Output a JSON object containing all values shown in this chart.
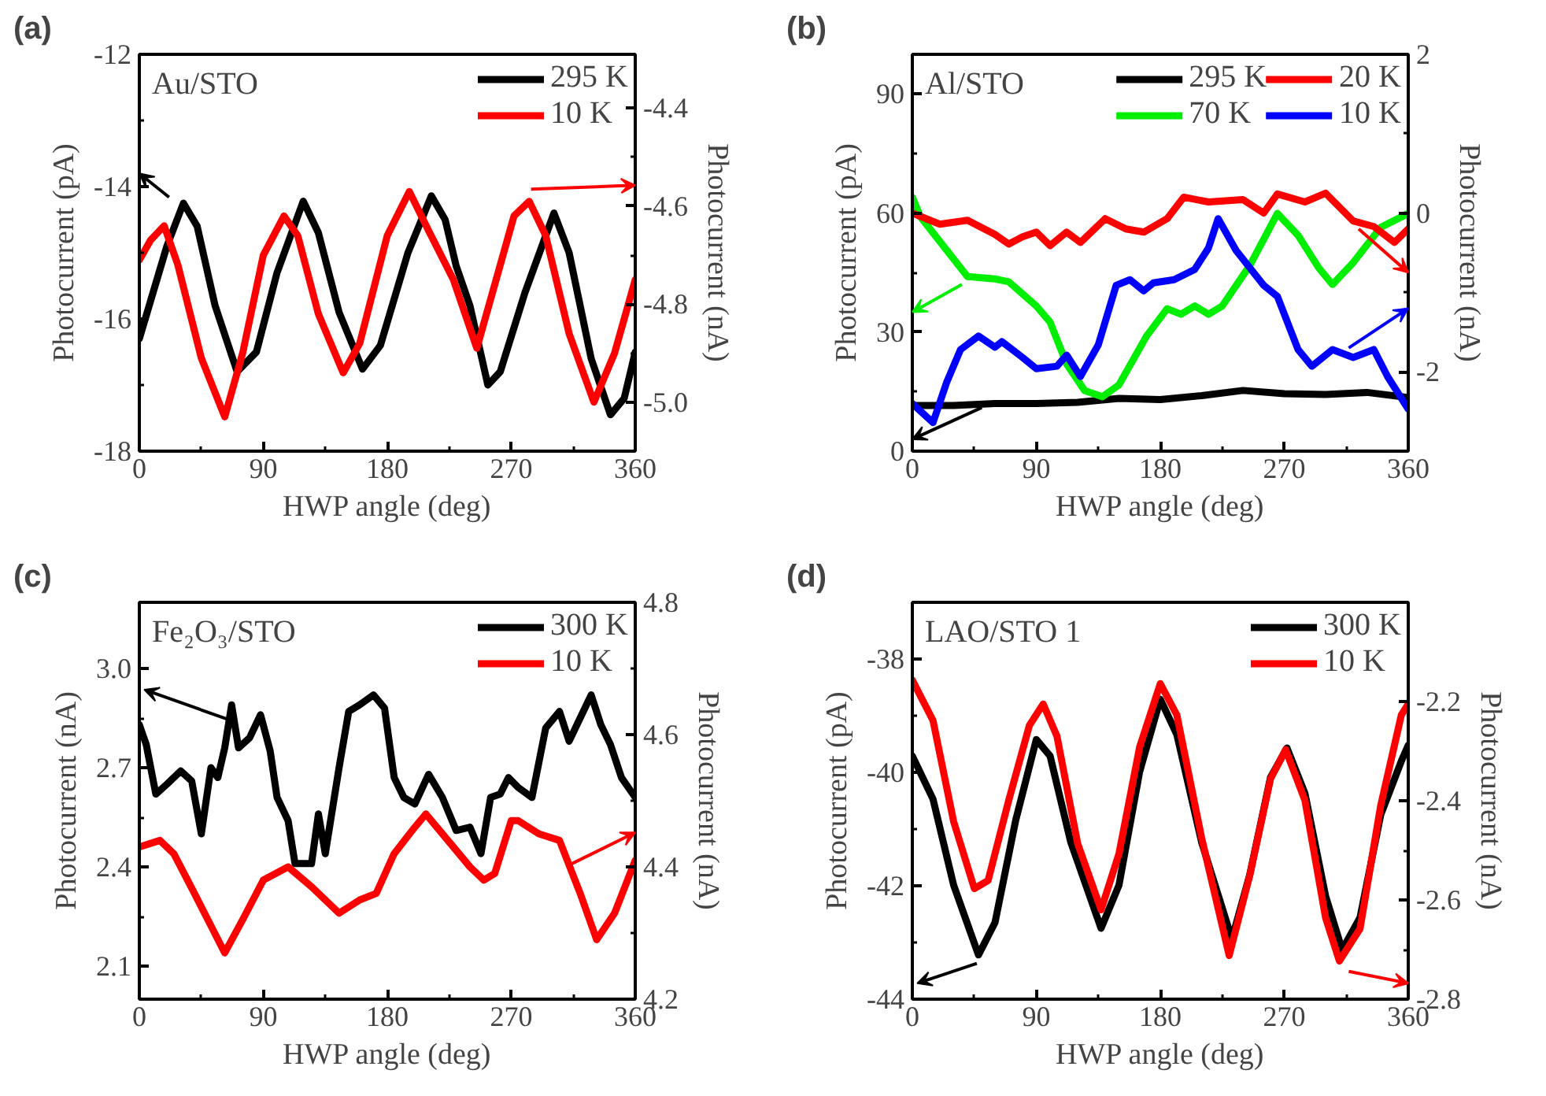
{
  "chart_data": [
    {
      "type": "line",
      "title": "(a)",
      "xlabel": "HWP angle (deg)",
      "ylabel": "Photocurrent (pA)",
      "y2label": "Photocurrent (nA)",
      "annotations": [
        "Au/STO"
      ],
      "legend": "top right",
      "grid": false,
      "xlim": [
        0,
        360
      ],
      "xticks": [
        0,
        90,
        180,
        270,
        360
      ],
      "ylim": [
        -18,
        -12
      ],
      "yticks": [
        -18,
        -16,
        -14,
        -12
      ],
      "y2lim": [
        -5.1,
        -4.29
      ],
      "y2ticks": [
        {
          "value": -5.0,
          "label": "-5.0"
        },
        -4.8,
        -4.6,
        -4.4
      ],
      "series": [
        {
          "name": "295 K",
          "color": "#000000",
          "x": [
            0,
            10,
            20,
            32,
            42,
            55,
            71,
            85,
            100,
            119,
            130,
            145,
            162,
            175,
            195,
            212,
            222,
            230,
            240,
            253,
            262,
            280,
            301,
            312,
            328,
            342,
            352,
            360
          ],
          "values": [
            -16.3,
            -15.6,
            -14.9,
            -14.25,
            -14.6,
            -15.8,
            -16.8,
            -16.5,
            -15.3,
            -14.22,
            -14.7,
            -15.9,
            -16.76,
            -16.4,
            -15.0,
            -14.14,
            -14.5,
            -15.2,
            -15.8,
            -17.0,
            -16.8,
            -15.6,
            -14.4,
            -15.0,
            -16.6,
            -17.45,
            -17.2,
            -16.5
          ]
        },
        {
          "name": "10 K",
          "color": "#ff0000",
          "axis": "y2",
          "x": [
            0,
            8,
            18,
            28,
            45,
            62,
            75,
            90,
            105,
            115,
            130,
            148,
            160,
            180,
            196,
            210,
            228,
            245,
            258,
            272,
            283,
            295,
            312,
            330,
            345,
            360
          ],
          "values": [
            -4.71,
            -4.67,
            -4.64,
            -4.72,
            -4.91,
            -5.03,
            -4.9,
            -4.7,
            -4.62,
            -4.66,
            -4.82,
            -4.94,
            -4.88,
            -4.66,
            -4.57,
            -4.65,
            -4.75,
            -4.89,
            -4.76,
            -4.62,
            -4.59,
            -4.66,
            -4.86,
            -5.0,
            -4.9,
            -4.75
          ]
        }
      ]
    },
    {
      "type": "line",
      "title": "(b)",
      "xlabel": "HWP angle (deg)",
      "ylabel": "Photocurrent (pA)",
      "y2label": "Photocurrent (nA)",
      "annotations": [
        "Al/STO"
      ],
      "legend": "top right",
      "grid": false,
      "xlim": [
        0,
        360
      ],
      "xticks": [
        0,
        90,
        180,
        270,
        360
      ],
      "ylim": [
        0,
        100
      ],
      "yticks": [
        0,
        30,
        60,
        90
      ],
      "y2lim": [
        -3,
        2
      ],
      "y2ticks": [
        -2,
        0,
        2
      ],
      "series": [
        {
          "name": "295 K",
          "color": "#000000",
          "x": [
            0,
            30,
            60,
            90,
            120,
            150,
            180,
            210,
            240,
            270,
            300,
            330,
            360
          ],
          "values": [
            11.5,
            11.5,
            12,
            12,
            12.3,
            13.3,
            13,
            14,
            15.3,
            14.5,
            14.3,
            14.8,
            13.5
          ]
        },
        {
          "name": "70 K",
          "color": "#00ee00",
          "x": [
            0,
            6,
            40,
            60,
            70,
            90,
            100,
            112,
            125,
            138,
            150,
            170,
            185,
            195,
            205,
            215,
            225,
            245,
            265,
            280,
            295,
            305,
            320,
            340,
            360
          ],
          "values": [
            64,
            59,
            44,
            43.4,
            42.7,
            36.6,
            32.5,
            22,
            15.3,
            13.7,
            16.7,
            29,
            35.9,
            34.5,
            36.6,
            34.5,
            36.6,
            46.8,
            59.9,
            54.4,
            46.2,
            42,
            47.5,
            56.4,
            59.9
          ]
        },
        {
          "name": "20 K",
          "color": "#ff0000",
          "axis": "y2",
          "x": [
            0,
            20,
            40,
            60,
            70,
            80,
            90,
            100,
            112,
            122,
            140,
            155,
            168,
            185,
            197,
            215,
            240,
            255,
            265,
            285,
            300,
            320,
            335,
            350,
            360
          ],
          "values": [
            0,
            -0.14,
            -0.09,
            -0.27,
            -0.39,
            -0.3,
            -0.24,
            -0.41,
            -0.24,
            -0.37,
            -0.07,
            -0.2,
            -0.24,
            -0.07,
            0.2,
            0.14,
            0.17,
            0,
            0.24,
            0.14,
            0.25,
            -0.1,
            -0.17,
            -0.37,
            -0.2
          ]
        },
        {
          "name": "10 K",
          "color": "#0000ff",
          "axis": "y2",
          "x": [
            0,
            15,
            25,
            35,
            48,
            60,
            65,
            80,
            90,
            105,
            112,
            122,
            135,
            148,
            158,
            168,
            175,
            190,
            205,
            215,
            222,
            235,
            255,
            265,
            280,
            290,
            305,
            320,
            335,
            345,
            360
          ],
          "values": [
            -2.4,
            -2.64,
            -2.13,
            -1.72,
            -1.55,
            -1.69,
            -1.62,
            -1.82,
            -1.96,
            -1.93,
            -1.79,
            -2.06,
            -1.66,
            -0.91,
            -0.84,
            -0.98,
            -0.88,
            -0.84,
            -0.71,
            -0.44,
            -0.07,
            -0.47,
            -0.91,
            -1.05,
            -1.72,
            -1.93,
            -1.72,
            -1.82,
            -1.72,
            -2.06,
            -2.47
          ]
        }
      ]
    },
    {
      "type": "line",
      "title": "(c)",
      "xlabel": "HWP angle (deg)",
      "ylabel": "Photocurrent (nA)",
      "y2label": "Photocurrent (nA)",
      "annotations": [
        "Fe₂O₃/STO"
      ],
      "legend": "top right",
      "grid": false,
      "xlim": [
        0,
        360
      ],
      "xticks": [
        0,
        90,
        180,
        270,
        360
      ],
      "ylim": [
        2.0,
        3.2
      ],
      "yticks": [
        2.1,
        2.4,
        2.7,
        {
          "value": 3.0,
          "label": "3.0"
        }
      ],
      "y2lim": [
        4.2,
        4.8
      ],
      "y2ticks": [
        4.2,
        4.4,
        4.6,
        4.8
      ],
      "series": [
        {
          "name": "300 K",
          "color": "#000000",
          "x": [
            0,
            5,
            12,
            20,
            30,
            38,
            45,
            52,
            57,
            62,
            67,
            72,
            80,
            88,
            95,
            100,
            108,
            113,
            125,
            130,
            135,
            145,
            152,
            160,
            170,
            178,
            185,
            192,
            200,
            210,
            220,
            230,
            240,
            248,
            255,
            262,
            268,
            275,
            285,
            295,
            305,
            312,
            320,
            328,
            335,
            342,
            350,
            360
          ],
          "values": [
            2.83,
            2.77,
            2.62,
            2.65,
            2.69,
            2.66,
            2.5,
            2.7,
            2.67,
            2.76,
            2.89,
            2.76,
            2.79,
            2.86,
            2.75,
            2.61,
            2.54,
            2.41,
            2.41,
            2.56,
            2.44,
            2.7,
            2.87,
            2.89,
            2.92,
            2.88,
            2.67,
            2.61,
            2.59,
            2.68,
            2.61,
            2.51,
            2.52,
            2.44,
            2.61,
            2.62,
            2.67,
            2.64,
            2.61,
            2.82,
            2.87,
            2.78,
            2.85,
            2.92,
            2.83,
            2.77,
            2.67,
            2.61
          ]
        },
        {
          "name": "10 K",
          "color": "#ff0000",
          "axis": "y2",
          "x": [
            0,
            15,
            25,
            40,
            62,
            75,
            90,
            108,
            125,
            145,
            160,
            172,
            185,
            200,
            208,
            220,
            240,
            250,
            258,
            270,
            275,
            290,
            305,
            320,
            332,
            345,
            360
          ],
          "values": [
            4.43,
            4.44,
            4.42,
            4.36,
            4.27,
            4.32,
            4.38,
            4.4,
            4.37,
            4.33,
            4.35,
            4.36,
            4.42,
            4.46,
            4.48,
            4.45,
            4.4,
            4.38,
            4.39,
            4.47,
            4.47,
            4.45,
            4.44,
            4.36,
            4.29,
            4.33,
            4.41
          ]
        }
      ]
    },
    {
      "type": "line",
      "title": "(d)",
      "xlabel": "HWP angle (deg)",
      "ylabel": "Photocurrent (pA)",
      "y2label": "Photocurrent (nA)",
      "annotations": [
        "LAO/STO 1"
      ],
      "legend": "top right",
      "grid": false,
      "xlim": [
        0,
        360
      ],
      "xticks": [
        0,
        90,
        180,
        270,
        360
      ],
      "ylim": [
        -44,
        -37
      ],
      "yticks": [
        -44,
        -42,
        -40,
        -38
      ],
      "y2lim": [
        -2.8,
        -2.0
      ],
      "y2ticks": [
        -2.8,
        -2.6,
        -2.4,
        -2.2
      ],
      "series": [
        {
          "name": "300 K",
          "color": "#000000",
          "x": [
            0,
            15,
            30,
            48,
            60,
            75,
            90,
            100,
            115,
            137,
            150,
            165,
            180,
            192,
            210,
            232,
            245,
            260,
            272,
            285,
            300,
            312,
            325,
            340,
            355,
            360
          ],
          "values": [
            -39.71,
            -40.47,
            -41.99,
            -43.22,
            -42.65,
            -40.85,
            -39.42,
            -39.71,
            -41.23,
            -42.75,
            -41.99,
            -39.99,
            -38.71,
            -39.33,
            -41.23,
            -42.94,
            -41.8,
            -40.09,
            -39.57,
            -40.37,
            -42.18,
            -43.13,
            -42.56,
            -40.75,
            -39.8,
            -39.52
          ]
        },
        {
          "name": "10 K",
          "color": "#ff0000",
          "axis": "y2",
          "x": [
            0,
            15,
            30,
            45,
            55,
            70,
            85,
            95,
            105,
            120,
            137,
            150,
            165,
            180,
            192,
            210,
            230,
            245,
            260,
            271,
            285,
            300,
            310,
            325,
            340,
            355,
            360
          ],
          "values": [
            -2.157,
            -2.238,
            -2.442,
            -2.577,
            -2.561,
            -2.399,
            -2.248,
            -2.205,
            -2.27,
            -2.486,
            -2.62,
            -2.507,
            -2.292,
            -2.164,
            -2.227,
            -2.475,
            -2.712,
            -2.55,
            -2.356,
            -2.297,
            -2.399,
            -2.636,
            -2.723,
            -2.658,
            -2.41,
            -2.227,
            -2.205
          ]
        }
      ]
    }
  ]
}
